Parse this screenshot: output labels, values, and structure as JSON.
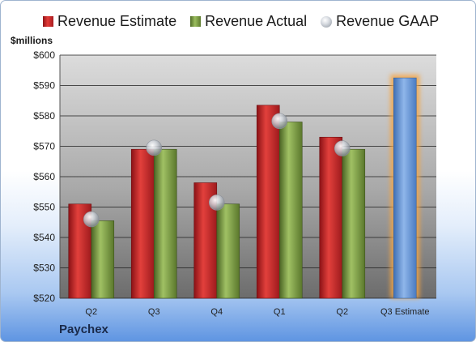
{
  "company": "Paychex",
  "unit_label": "$millions",
  "legend": [
    {
      "key": "estimate",
      "label": "Revenue Estimate",
      "icon": "red-bar-swatch"
    },
    {
      "key": "actual",
      "label": "Revenue Actual",
      "icon": "green-bar-swatch"
    },
    {
      "key": "gaap",
      "label": "Revenue GAAP",
      "icon": "silver-bubble"
    }
  ],
  "colors": {
    "estimate": "#c8262a",
    "actual": "#7fa046",
    "gaap": "#c0c4ca",
    "future_estimate": "#6f9fdb",
    "future_glow": "#f5a544"
  },
  "chart_data": {
    "type": "bar",
    "categories": [
      "Q2",
      "Q3",
      "Q4",
      "Q1",
      "Q2",
      "Q3 Estimate"
    ],
    "series": [
      {
        "name": "Revenue Estimate",
        "values": [
          551,
          569,
          558,
          583.5,
          573,
          592.5
        ]
      },
      {
        "name": "Revenue Actual",
        "values": [
          545.5,
          569,
          551,
          578,
          569,
          null
        ]
      },
      {
        "name": "Revenue GAAP",
        "values": [
          546,
          569.5,
          551.5,
          578.3,
          569.3,
          null
        ]
      }
    ],
    "ylim": [
      520,
      600
    ],
    "y_ticks": [
      520,
      530,
      540,
      550,
      560,
      570,
      580,
      590,
      600
    ],
    "tick_prefix": "$",
    "grid": true,
    "legend_position": "top",
    "highlight_category": "Q3 Estimate"
  }
}
